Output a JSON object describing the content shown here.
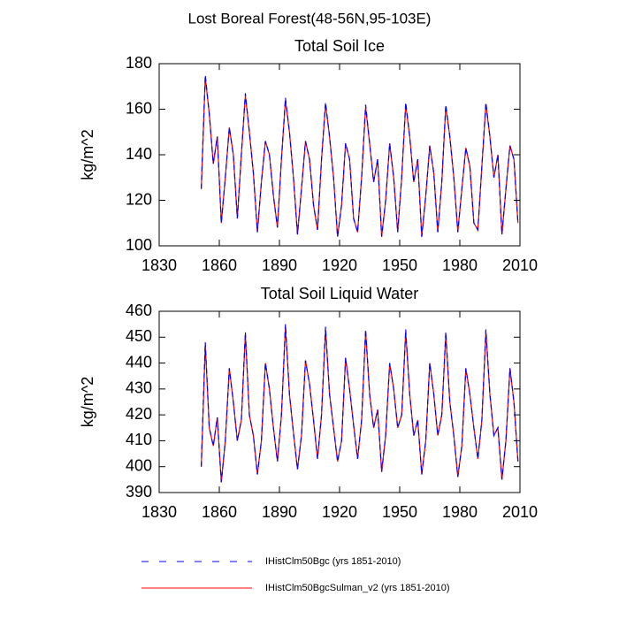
{
  "title": "Lost Boreal Forest(48-56N,95-103E)",
  "chart_data": [
    {
      "type": "line",
      "title": "Total Soil Ice",
      "ylabel": "kg/m^2",
      "xlim": [
        1830,
        2010
      ],
      "xticks": [
        1830,
        1860,
        1890,
        1920,
        1950,
        1980,
        2010
      ],
      "ylim": [
        100,
        180
      ],
      "yticks": [
        100,
        120,
        140,
        160,
        180
      ],
      "x": [
        1851,
        1853,
        1855,
        1857,
        1859,
        1861,
        1863,
        1865,
        1867,
        1869,
        1871,
        1873,
        1875,
        1877,
        1879,
        1881,
        1883,
        1885,
        1887,
        1889,
        1891,
        1893,
        1895,
        1897,
        1899,
        1901,
        1903,
        1905,
        1907,
        1909,
        1911,
        1913,
        1915,
        1917,
        1919,
        1921,
        1923,
        1925,
        1927,
        1929,
        1931,
        1933,
        1935,
        1937,
        1939,
        1941,
        1943,
        1945,
        1947,
        1949,
        1951,
        1953,
        1955,
        1957,
        1959,
        1961,
        1963,
        1965,
        1967,
        1969,
        1971,
        1973,
        1975,
        1977,
        1979,
        1981,
        1983,
        1985,
        1987,
        1989,
        1991,
        1993,
        1995,
        1997,
        1999,
        2001,
        2003,
        2005,
        2007,
        2009
      ],
      "series": [
        {
          "name": "IHistClm50Bgc (yrs 1851-2010)",
          "color": "#0000ff",
          "style": "dashed",
          "values": [
            125,
            175,
            158,
            136,
            148,
            110,
            130,
            152,
            140,
            112,
            140,
            167,
            150,
            132,
            106,
            128,
            146,
            140,
            122,
            108,
            138,
            165,
            150,
            130,
            105,
            125,
            146,
            138,
            118,
            107,
            138,
            163,
            148,
            130,
            104,
            118,
            145,
            138,
            112,
            106,
            130,
            162,
            145,
            128,
            138,
            104,
            120,
            145,
            130,
            106,
            130,
            163,
            148,
            128,
            138,
            104,
            122,
            144,
            132,
            106,
            128,
            162,
            148,
            130,
            106,
            125,
            143,
            135,
            110,
            107,
            135,
            163,
            148,
            130,
            140,
            105,
            125,
            144,
            138,
            110
          ]
        },
        {
          "name": "IHistClm50BgcSulman_v2 (yrs 1851-2010)",
          "color": "#ff0000",
          "style": "solid",
          "values": [
            125,
            174,
            158,
            136,
            148,
            110,
            130,
            152,
            140,
            112,
            140,
            166,
            150,
            132,
            106,
            128,
            146,
            140,
            122,
            108,
            138,
            164,
            150,
            130,
            105,
            125,
            146,
            138,
            118,
            107,
            138,
            162,
            148,
            130,
            104,
            118,
            145,
            138,
            112,
            106,
            130,
            161,
            145,
            128,
            138,
            104,
            120,
            145,
            130,
            106,
            130,
            162,
            148,
            128,
            138,
            104,
            122,
            144,
            132,
            106,
            128,
            161,
            148,
            130,
            106,
            125,
            143,
            135,
            110,
            107,
            135,
            162,
            148,
            130,
            140,
            105,
            125,
            144,
            138,
            110
          ]
        }
      ]
    },
    {
      "type": "line",
      "title": "Total Soil Liquid Water",
      "ylabel": "kg/m^2",
      "xlim": [
        1830,
        2010
      ],
      "xticks": [
        1830,
        1860,
        1890,
        1920,
        1950,
        1980,
        2010
      ],
      "ylim": [
        390,
        460
      ],
      "yticks": [
        390,
        400,
        410,
        420,
        430,
        440,
        450,
        460
      ],
      "x": [
        1851,
        1853,
        1855,
        1857,
        1859,
        1861,
        1863,
        1865,
        1867,
        1869,
        1871,
        1873,
        1875,
        1877,
        1879,
        1881,
        1883,
        1885,
        1887,
        1889,
        1891,
        1893,
        1895,
        1897,
        1899,
        1901,
        1903,
        1905,
        1907,
        1909,
        1911,
        1913,
        1915,
        1917,
        1919,
        1921,
        1923,
        1925,
        1927,
        1929,
        1931,
        1933,
        1935,
        1937,
        1939,
        1941,
        1943,
        1945,
        1947,
        1949,
        1951,
        1953,
        1955,
        1957,
        1959,
        1961,
        1963,
        1965,
        1967,
        1969,
        1971,
        1973,
        1975,
        1977,
        1979,
        1981,
        1983,
        1985,
        1987,
        1989,
        1991,
        1993,
        1995,
        1997,
        1999,
        2001,
        2003,
        2005,
        2007,
        2009
      ],
      "series": [
        {
          "name": "IHistClm50Bgc (yrs 1851-2010)",
          "color": "#0000ff",
          "style": "dashed",
          "values": [
            400,
            448,
            415,
            408,
            419,
            394,
            410,
            438,
            425,
            410,
            418,
            452,
            420,
            412,
            397,
            410,
            440,
            430,
            415,
            402,
            420,
            455,
            428,
            413,
            399,
            412,
            441,
            432,
            418,
            403,
            420,
            454,
            428,
            415,
            402,
            410,
            442,
            430,
            416,
            403,
            418,
            453,
            428,
            415,
            422,
            398,
            412,
            440,
            430,
            415,
            420,
            453,
            428,
            412,
            418,
            397,
            410,
            440,
            428,
            412,
            420,
            452,
            425,
            412,
            396,
            408,
            438,
            428,
            415,
            403,
            418,
            453,
            428,
            412,
            415,
            395,
            410,
            438,
            425,
            402
          ]
        },
        {
          "name": "IHistClm50BgcSulman_v2 (yrs 1851-2010)",
          "color": "#ff0000",
          "style": "solid",
          "values": [
            400,
            447,
            415,
            408,
            419,
            394,
            410,
            438,
            425,
            410,
            418,
            451,
            420,
            412,
            397,
            410,
            440,
            430,
            415,
            402,
            420,
            454,
            428,
            413,
            399,
            412,
            441,
            432,
            418,
            403,
            420,
            453,
            428,
            415,
            402,
            410,
            442,
            430,
            416,
            403,
            418,
            452,
            428,
            415,
            422,
            398,
            412,
            440,
            430,
            415,
            420,
            452,
            428,
            412,
            418,
            397,
            410,
            440,
            428,
            412,
            420,
            451,
            425,
            412,
            396,
            408,
            438,
            428,
            415,
            403,
            418,
            452,
            428,
            412,
            415,
            395,
            410,
            438,
            425,
            402
          ]
        }
      ]
    }
  ]
}
